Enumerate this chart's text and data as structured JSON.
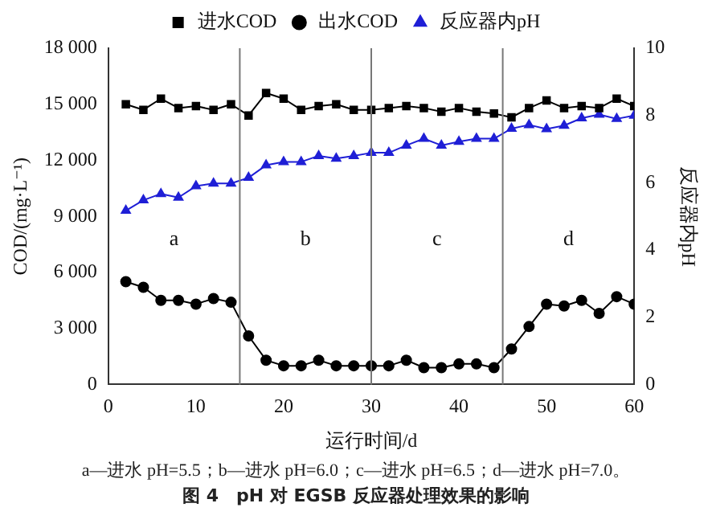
{
  "chart_data": {
    "type": "line",
    "xlabel": "运行时间/d",
    "ylabel": "COD/(mg·L⁻¹)",
    "y2label": "反应器内pH",
    "x": [
      2,
      4,
      6,
      8,
      10,
      12,
      14,
      16,
      18,
      20,
      22,
      24,
      26,
      28,
      30,
      32,
      34,
      36,
      38,
      40,
      42,
      44,
      46,
      48,
      50,
      52,
      54,
      56,
      58,
      60
    ],
    "series": [
      {
        "name": "进水COD",
        "color": "#000000",
        "marker": "square",
        "values": [
          15000,
          14700,
          15300,
          14800,
          14900,
          14700,
          15000,
          14400,
          15600,
          15300,
          14700,
          14900,
          15000,
          14700,
          14700,
          14800,
          14900,
          14800,
          14600,
          14800,
          14600,
          14500,
          14300,
          14800,
          15200,
          14800,
          14900,
          14800,
          15300,
          14900
        ]
      },
      {
        "name": "出水COD",
        "color": "#000000",
        "marker": "circle",
        "values": [
          5500,
          5200,
          4500,
          4500,
          4300,
          4600,
          4400,
          2600,
          1300,
          1000,
          1000,
          1300,
          1000,
          1000,
          1000,
          1000,
          1300,
          900,
          900,
          1100,
          1100,
          900,
          1900,
          3100,
          4300,
          4200,
          4500,
          3800,
          4700,
          4300
        ]
      },
      {
        "name": "反应器内pH",
        "color": "#1f1fd6",
        "marker": "triangle",
        "axis": "y2",
        "values": [
          5.17,
          5.48,
          5.67,
          5.56,
          5.9,
          5.98,
          5.98,
          6.15,
          6.52,
          6.62,
          6.62,
          6.8,
          6.72,
          6.8,
          6.89,
          6.89,
          7.11,
          7.31,
          7.11,
          7.22,
          7.31,
          7.31,
          7.61,
          7.72,
          7.6,
          7.7,
          7.92,
          8.03,
          7.9,
          8.0
        ]
      }
    ],
    "xlim": [
      0,
      60
    ],
    "xticks": [
      0,
      10,
      20,
      30,
      40,
      50,
      60
    ],
    "ylim": [
      0,
      18000
    ],
    "yticks": [
      0,
      {
        "value": 3000,
        "label": "3 000"
      },
      {
        "value": 6000,
        "label": "6 000"
      },
      {
        "value": 9000,
        "label": "9 000"
      },
      {
        "value": 12000,
        "label": "12 000"
      },
      {
        "value": 15000,
        "label": "15 000"
      },
      {
        "value": 18000,
        "label": "18 000"
      }
    ],
    "y2lim": [
      0,
      10
    ],
    "y2ticks": [
      0,
      2,
      4,
      6,
      8,
      10
    ],
    "ref_lines": [
      {
        "axis": "x",
        "value": 15,
        "color": "#777777"
      },
      {
        "axis": "x",
        "value": 30,
        "color": "#777777"
      },
      {
        "axis": "x",
        "value": 45,
        "color": "#777777"
      }
    ],
    "annotations": [
      "a",
      "b",
      "c",
      "d",
      "a—进水 pH=5.5；b—进水 pH=6.0；c—进水 pH=6.5；d—进水 pH=7.0。",
      "图 4　pH 对 EGSB 反应器处理效果的影响"
    ],
    "legend": "top",
    "grid": false
  }
}
